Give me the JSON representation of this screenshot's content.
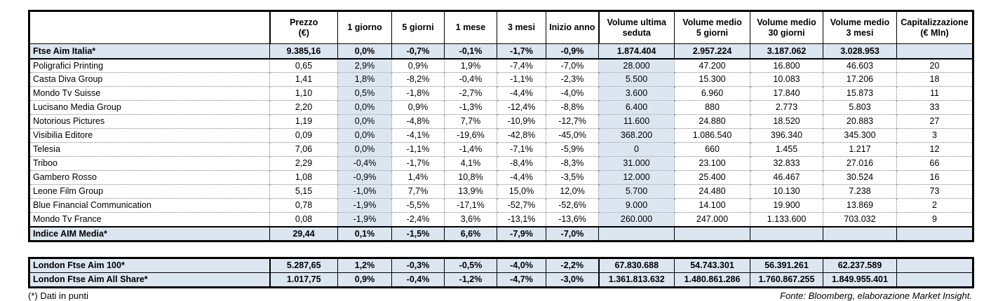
{
  "columns": [
    "",
    "Prezzo\n(€)",
    "1 giorno",
    "5 giorni",
    "1 mese",
    "3 mesi",
    "Inizio anno",
    "Volume ultima\nseduta",
    "Volume medio\n5 giorni",
    "Volume medio\n30 giorni",
    "Volume medio\n3 mesi",
    "Capitalizzazione\n(€ Mln)"
  ],
  "main": {
    "rows": [
      {
        "type": "index",
        "cells": [
          "Ftse Aim Italia*",
          "9.385,16",
          "0,0%",
          "-0,7%",
          "-0,1%",
          "-1,7%",
          "-0,9%",
          "1.874.404",
          "2.957.224",
          "3.187.062",
          "3.028.953",
          ""
        ]
      },
      {
        "type": "stock",
        "cells": [
          "Poligrafici Printing",
          "0,65",
          "2,9%",
          "0,9%",
          "1,9%",
          "-7,4%",
          "-7,0%",
          "28.000",
          "47.200",
          "16.800",
          "46.603",
          "20"
        ]
      },
      {
        "type": "stock",
        "cells": [
          "Casta Diva Group",
          "1,41",
          "1,8%",
          "-8,2%",
          "-0,4%",
          "-1,1%",
          "-2,3%",
          "5.500",
          "15.300",
          "10.083",
          "17.206",
          "18"
        ]
      },
      {
        "type": "stock",
        "cells": [
          "Mondo Tv Suisse",
          "1,10",
          "0,5%",
          "-1,8%",
          "-2,7%",
          "-4,4%",
          "-4,0%",
          "3.600",
          "6.960",
          "17.840",
          "15.873",
          "11"
        ]
      },
      {
        "type": "stock",
        "cells": [
          "Lucisano Media Group",
          "2,20",
          "0,0%",
          "0,9%",
          "-1,3%",
          "-12,4%",
          "-8,8%",
          "6.400",
          "880",
          "2.773",
          "5.803",
          "33"
        ]
      },
      {
        "type": "stock",
        "cells": [
          "Notorious Pictures",
          "1,19",
          "0,0%",
          "-4,8%",
          "7,7%",
          "-10,9%",
          "-12,7%",
          "11.600",
          "24.880",
          "18.520",
          "20.883",
          "27"
        ]
      },
      {
        "type": "stock",
        "cells": [
          "Visibilia Editore",
          "0,09",
          "0,0%",
          "-4,1%",
          "-19,6%",
          "-42,8%",
          "-45,0%",
          "368.200",
          "1.086.540",
          "396.340",
          "345.300",
          "3"
        ]
      },
      {
        "type": "stock",
        "cells": [
          "Telesia",
          "7,06",
          "0,0%",
          "-1,1%",
          "-1,4%",
          "-7,1%",
          "-5,9%",
          "0",
          "660",
          "1.455",
          "1.217",
          "12"
        ]
      },
      {
        "type": "stock",
        "cells": [
          "Triboo",
          "2,29",
          "-0,4%",
          "-1,7%",
          "4,1%",
          "-8,4%",
          "-8,3%",
          "31.000",
          "23.100",
          "32.833",
          "27.016",
          "66"
        ]
      },
      {
        "type": "stock",
        "cells": [
          "Gambero Rosso",
          "1,08",
          "-0,9%",
          "1,4%",
          "10,8%",
          "-4,4%",
          "-3,5%",
          "12.000",
          "25.400",
          "46.467",
          "30.524",
          "16"
        ]
      },
      {
        "type": "stock",
        "cells": [
          "Leone Film Group",
          "5,15",
          "-1,0%",
          "7,7%",
          "13,9%",
          "15,0%",
          "12,0%",
          "5.700",
          "24.480",
          "10.130",
          "7.238",
          "73"
        ]
      },
      {
        "type": "stock",
        "cells": [
          "Blue Financial Communication",
          "0,78",
          "-1,9%",
          "-5,5%",
          "-17,1%",
          "-52,7%",
          "-52,6%",
          "9.000",
          "14.100",
          "19.900",
          "13.869",
          "2"
        ]
      },
      {
        "type": "stock",
        "cells": [
          "Mondo Tv France",
          "0,08",
          "-1,9%",
          "-2,4%",
          "3,6%",
          "-13,1%",
          "-13,6%",
          "260.000",
          "247.000",
          "1.133.600",
          "703.032",
          "9"
        ]
      },
      {
        "type": "index",
        "cells": [
          "Indice AIM Media*",
          "29,44",
          "0,1%",
          "-1,5%",
          "6,6%",
          "-7,9%",
          "-7,0%",
          "",
          "",
          "",
          "",
          ""
        ]
      }
    ]
  },
  "london": {
    "rows": [
      {
        "type": "index",
        "cells": [
          "London Ftse Aim 100*",
          "5.287,65",
          "1,2%",
          "-0,3%",
          "-0,5%",
          "-4,0%",
          "-2,2%",
          "67.830.688",
          "54.743.301",
          "56.391.261",
          "62.237.589",
          ""
        ]
      },
      {
        "type": "index",
        "cells": [
          "London Ftse Aim All Share*",
          "1.017,75",
          "0,9%",
          "-0,4%",
          "-1,2%",
          "-4,7%",
          "-3,0%",
          "1.361.813.632",
          "1.480.861.286",
          "1.760.867.255",
          "1.849.955.401",
          ""
        ]
      }
    ]
  },
  "footer": {
    "footnote": "(*) Dati in punti",
    "source": "Fonte: Bloomberg, elaborazione Market Insight."
  },
  "colors": {
    "highlight": "#dce6f1",
    "border": "#000000",
    "dotted_grid": "#808080"
  }
}
